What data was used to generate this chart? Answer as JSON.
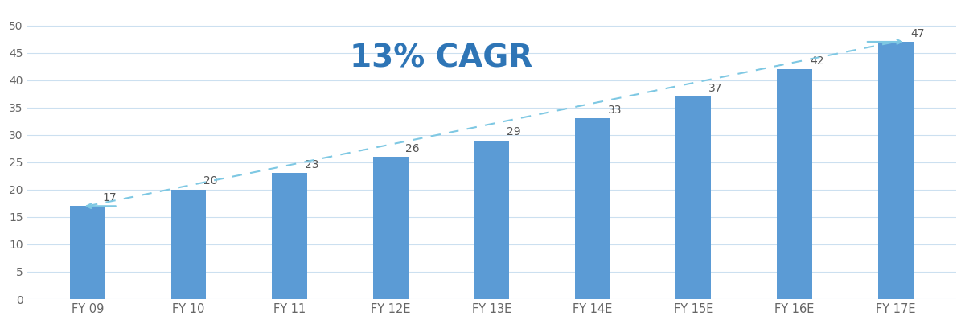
{
  "categories": [
    "FY 09",
    "FY 10",
    "FY 11",
    "FY 12E",
    "FY 13E",
    "FY 14E",
    "FY 15E",
    "FY 16E",
    "FY 17E"
  ],
  "values": [
    17,
    20,
    23,
    26,
    29,
    33,
    37,
    42,
    47
  ],
  "bar_color": "#5b9bd5",
  "line_color": "#7ec8e3",
  "annotation_color": "#555555",
  "cagr_text": "13% CAGR",
  "cagr_color": "#2e75b6",
  "background_color": "#ffffff",
  "grid_color": "#cce0f0",
  "yticks": [
    0,
    5,
    10,
    15,
    20,
    25,
    30,
    35,
    40,
    45,
    50
  ],
  "ylim": [
    0,
    53
  ],
  "bar_width": 0.35
}
